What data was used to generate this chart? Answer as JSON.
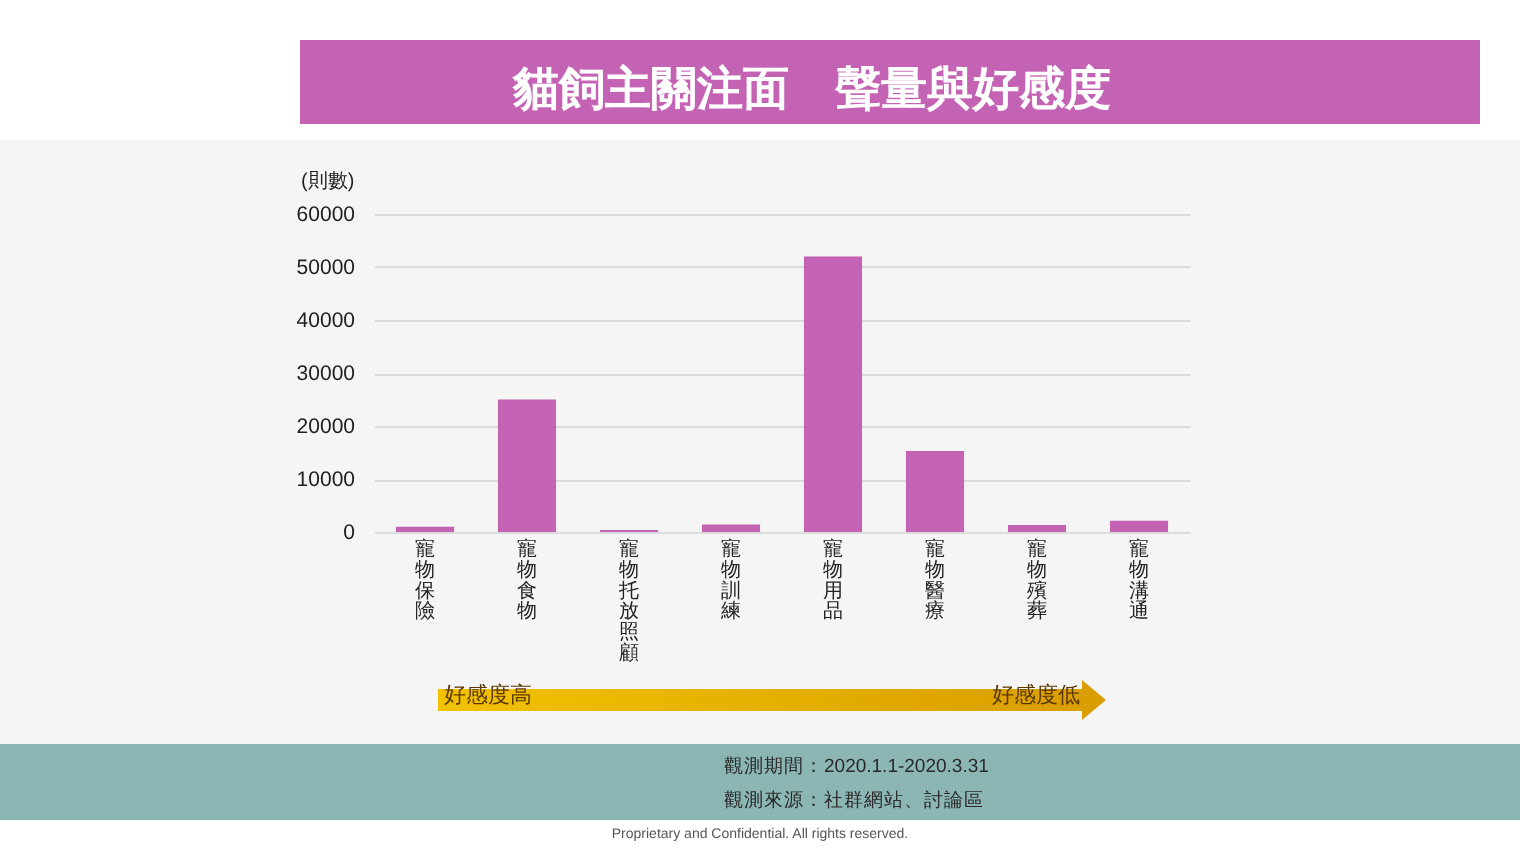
{
  "chart_data": {
    "type": "bar",
    "title": "貓飼主關注面　聲量與好感度",
    "ylabel": "(則數)",
    "categories": [
      "寵物保險",
      "寵物食物",
      "寵物托放照顧",
      "寵物訓練",
      "寵物用品",
      "寵物醫療",
      "寵物殯葬",
      "寵物溝通"
    ],
    "values": [
      1000,
      25000,
      400,
      1400,
      52000,
      15300,
      1300,
      2100
    ],
    "color": "#c462b4",
    "ylim": [
      0,
      60000
    ],
    "yticks": [
      0,
      10000,
      20000,
      30000,
      40000,
      50000,
      60000
    ],
    "grid": "y",
    "annotations": [
      "好感度高",
      "好感度低",
      "觀測期間：2020.1.1-2020.3.31",
      "觀測來源：社群網站、討論區",
      "Proprietary and Confidential. All rights reserved."
    ]
  }
}
